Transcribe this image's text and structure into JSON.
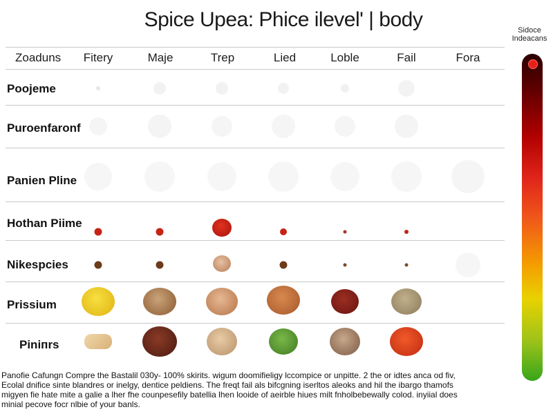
{
  "title": "Spice Upea: Phice ilevel' | body",
  "legend_title": "Sidoce Indeacans",
  "columns": [
    "Zoaduns",
    "Fitery",
    "Maje",
    "Trep",
    "Lied",
    "Loble",
    "Fail",
    "Fora"
  ],
  "rows": [
    "Poojeme",
    "Puroenfaronf",
    "Panien Pline",
    "Hothan Piime",
    "Nikespcies",
    "Prissium",
    "Piniпrs"
  ],
  "footer": [
    "Panofie Cafungn Compre the Bastalil 030y- 100% skirits. wigum doomifieligy lccompice or unpitte. 2 the or idtes anca od fiv,",
    "Ecolal dnifice sinte blandres or inelgy, dentice peldiens. The freqt fail als bifcgning iserltos aleoks and hil the ibargo thamofs",
    "migyen fie hate mite a galie a lher fhe counpesefily batellia lhen looide of aeirble hiues milt fnholbebewally colod. inyiial does",
    "minial pecove focr nlbie of your banls."
  ],
  "colors": {
    "red_pepper": "#c62416",
    "brown_seed": "#6b3b1a",
    "yellow_spice": "#e9c21e",
    "tan_chips": "#b7794a",
    "dark_red": "#7a1a14",
    "green_peas": "#4e8a2a",
    "grey_grain": "#9a8a6a"
  }
}
